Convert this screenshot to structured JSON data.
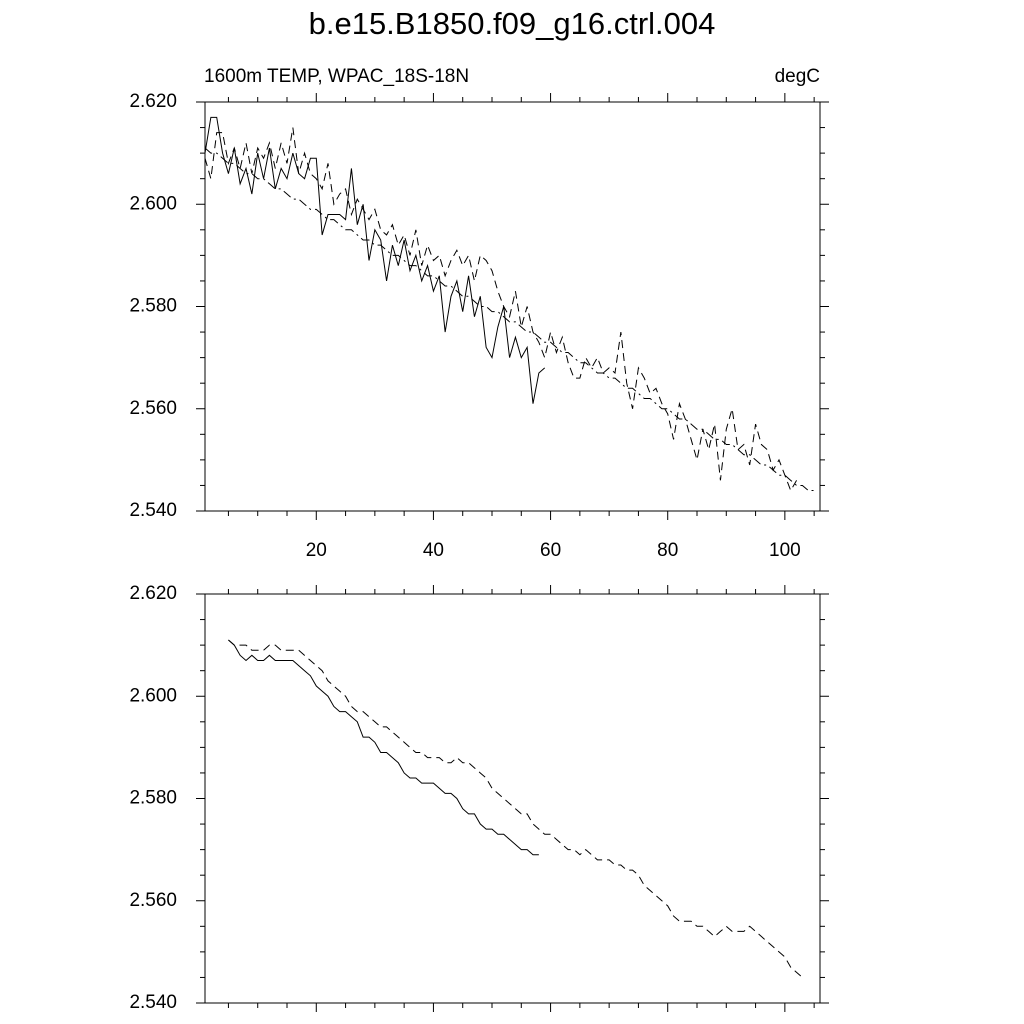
{
  "title": "b.e15.B1850.f09_g16.ctrl.004",
  "chart_data": [
    {
      "type": "line",
      "left_string": "1600m TEMP, WPAC_18S-18N",
      "right_string": "degC",
      "x": [
        1,
        2,
        3,
        4,
        5,
        6,
        7,
        8,
        9,
        10,
        11,
        12,
        13,
        14,
        15,
        16,
        17,
        18,
        19,
        20,
        21,
        22,
        23,
        24,
        25,
        26,
        27,
        28,
        29,
        30,
        31,
        32,
        33,
        34,
        35,
        36,
        37,
        38,
        39,
        40,
        41,
        42,
        43,
        44,
        45,
        46,
        47,
        48,
        49,
        50,
        51,
        52,
        53,
        54,
        55,
        56,
        57,
        58,
        59,
        60,
        61,
        62,
        63,
        64,
        65,
        66,
        67,
        68,
        69,
        70,
        71,
        72,
        73,
        74,
        75,
        76,
        77,
        78,
        79,
        80,
        81,
        82,
        83,
        84,
        85,
        86,
        87,
        88,
        89,
        90,
        91,
        92,
        93,
        94,
        95,
        96,
        97,
        98,
        99,
        100,
        101,
        102,
        103,
        104,
        105
      ],
      "xlim": [
        1,
        106
      ],
      "xticks": [
        20,
        40,
        60,
        80,
        100
      ],
      "xminorticks": [
        5,
        10,
        15,
        25,
        30,
        35,
        45,
        50,
        55,
        65,
        70,
        75,
        85,
        90,
        95,
        105
      ],
      "ylim": [
        2.54,
        2.62
      ],
      "yticks": [
        {
          "value": 2.54,
          "label": "2.540"
        },
        {
          "value": 2.56,
          "label": "2.560"
        },
        {
          "value": 2.58,
          "label": "2.580"
        },
        {
          "value": 2.6,
          "label": "2.600"
        },
        {
          "value": 2.62,
          "label": "2.620"
        }
      ],
      "yminorticks": [
        2.545,
        2.55,
        2.555,
        2.565,
        2.57,
        2.575,
        2.585,
        2.59,
        2.595,
        2.605,
        2.61,
        2.615
      ],
      "series": [
        {
          "color": "#000000",
          "dash": "solid",
          "values": [
            2.61,
            2.617,
            2.617,
            2.61,
            2.606,
            2.611,
            2.604,
            2.607,
            2.602,
            2.61,
            2.605,
            2.611,
            2.603,
            2.607,
            2.605,
            2.61,
            2.606,
            2.605,
            2.609,
            2.609,
            2.594,
            2.598,
            2.598,
            2.598,
            2.597,
            2.607,
            2.596,
            2.6,
            2.589,
            2.595,
            2.593,
            2.585,
            2.592,
            2.588,
            2.593,
            2.587,
            2.59,
            2.585,
            2.588,
            2.583,
            2.586,
            2.575,
            2.582,
            2.585,
            2.579,
            2.586,
            2.578,
            2.582,
            2.572,
            2.57,
            2.576,
            2.58,
            2.57,
            2.574,
            2.57,
            2.572,
            2.561,
            2.567,
            2.568,
            null,
            null,
            null,
            null,
            null,
            null,
            null,
            null,
            null,
            null,
            null,
            null,
            null,
            null,
            null,
            null,
            null,
            null,
            null,
            null,
            null,
            null,
            null,
            null,
            null,
            null,
            null,
            null,
            null,
            null,
            null,
            null,
            null,
            null,
            null,
            null,
            null,
            null,
            null,
            null,
            null,
            null,
            null,
            null,
            null,
            null
          ]
        },
        {
          "color": "#000000",
          "dash": "dashed",
          "values": [
            2.609,
            2.605,
            2.614,
            2.614,
            2.608,
            2.611,
            2.607,
            2.612,
            2.606,
            2.611,
            2.609,
            2.612,
            2.607,
            2.612,
            2.608,
            2.615,
            2.606,
            2.61,
            2.606,
            2.605,
            2.603,
            2.608,
            2.6,
            2.602,
            2.603,
            2.598,
            2.601,
            2.599,
            2.597,
            2.599,
            2.595,
            2.594,
            2.596,
            2.592,
            2.594,
            2.59,
            2.595,
            2.588,
            2.592,
            2.589,
            2.59,
            2.586,
            2.589,
            2.591,
            2.588,
            2.59,
            2.585,
            2.59,
            2.589,
            2.587,
            2.583,
            2.58,
            2.578,
            2.583,
            2.576,
            2.58,
            2.575,
            2.573,
            2.57,
            2.575,
            2.571,
            2.574,
            2.569,
            2.566,
            2.566,
            2.57,
            2.568,
            2.57,
            2.567,
            2.568,
            2.567,
            2.575,
            2.565,
            2.56,
            2.568,
            2.566,
            2.563,
            2.564,
            2.561,
            2.559,
            2.554,
            2.561,
            2.558,
            2.554,
            2.55,
            2.556,
            2.552,
            2.557,
            2.546,
            2.556,
            2.56,
            2.552,
            2.553,
            2.549,
            2.557,
            2.553,
            2.552,
            2.548,
            2.55,
            2.547,
            2.544,
            2.546,
            null,
            null,
            null
          ]
        },
        {
          "color": "#000000",
          "dash": "dashdot",
          "values": [
            2.611,
            2.61,
            2.61,
            2.609,
            2.608,
            2.608,
            2.607,
            2.606,
            2.606,
            2.605,
            2.605,
            2.604,
            2.603,
            2.603,
            2.602,
            2.601,
            2.601,
            2.6,
            2.599,
            2.599,
            2.598,
            2.597,
            2.597,
            2.596,
            2.595,
            2.595,
            2.594,
            2.593,
            2.593,
            2.592,
            2.592,
            2.591,
            2.59,
            2.59,
            2.589,
            2.588,
            2.588,
            2.587,
            2.586,
            2.586,
            2.585,
            2.584,
            2.584,
            2.583,
            2.582,
            2.582,
            2.581,
            2.58,
            2.58,
            2.579,
            2.579,
            2.578,
            2.577,
            2.577,
            2.576,
            2.575,
            2.575,
            2.574,
            2.573,
            2.573,
            2.572,
            2.571,
            2.571,
            2.57,
            2.569,
            2.569,
            2.568,
            2.567,
            2.567,
            2.566,
            2.566,
            2.565,
            2.564,
            2.564,
            2.563,
            2.562,
            2.562,
            2.561,
            2.56,
            2.56,
            2.559,
            2.558,
            2.558,
            2.557,
            2.556,
            2.556,
            2.555,
            2.554,
            2.554,
            2.553,
            2.553,
            2.552,
            2.551,
            2.551,
            2.55,
            2.549,
            2.549,
            2.548,
            2.547,
            2.547,
            2.546,
            2.545,
            2.545,
            2.544,
            2.544
          ]
        }
      ]
    },
    {
      "type": "line",
      "x": [
        5,
        6,
        7,
        8,
        9,
        10,
        11,
        12,
        13,
        14,
        15,
        16,
        17,
        18,
        19,
        20,
        21,
        22,
        23,
        24,
        25,
        26,
        27,
        28,
        29,
        30,
        31,
        32,
        33,
        34,
        35,
        36,
        37,
        38,
        39,
        40,
        41,
        42,
        43,
        44,
        45,
        46,
        47,
        48,
        49,
        50,
        51,
        52,
        53,
        54,
        55,
        56,
        57,
        58,
        59,
        60,
        61,
        62,
        63,
        64,
        65,
        66,
        67,
        68,
        69,
        70,
        71,
        72,
        73,
        74,
        75,
        76,
        77,
        78,
        79,
        80,
        81,
        82,
        83,
        84,
        85,
        86,
        87,
        88,
        89,
        90,
        91,
        92,
        93,
        94,
        95,
        96,
        97,
        98,
        99,
        100,
        101,
        102,
        103
      ],
      "xlim": [
        1,
        106
      ],
      "xticks": [
        20,
        40,
        60,
        80,
        100
      ],
      "xminorticks": [
        5,
        10,
        15,
        25,
        30,
        35,
        45,
        50,
        55,
        65,
        70,
        75,
        85,
        90,
        95,
        105
      ],
      "ylim": [
        2.54,
        2.62
      ],
      "yticks": [
        {
          "value": 2.54,
          "label": "2.540"
        },
        {
          "value": 2.56,
          "label": "2.560"
        },
        {
          "value": 2.58,
          "label": "2.580"
        },
        {
          "value": 2.6,
          "label": "2.600"
        },
        {
          "value": 2.62,
          "label": "2.620"
        }
      ],
      "yminorticks": [
        2.545,
        2.55,
        2.555,
        2.565,
        2.57,
        2.575,
        2.585,
        2.59,
        2.595,
        2.605,
        2.61,
        2.615
      ],
      "series": [
        {
          "color": "#000000",
          "dash": "solid",
          "values": [
            2.611,
            2.61,
            2.608,
            2.607,
            2.608,
            2.607,
            2.607,
            2.608,
            2.607,
            2.607,
            2.607,
            2.607,
            2.606,
            2.605,
            2.604,
            2.602,
            2.601,
            2.6,
            2.598,
            2.597,
            2.597,
            2.596,
            2.595,
            2.592,
            2.592,
            2.591,
            2.589,
            2.589,
            2.588,
            2.587,
            2.585,
            2.584,
            2.584,
            2.583,
            2.583,
            2.583,
            2.582,
            2.581,
            2.581,
            2.58,
            2.578,
            2.577,
            2.577,
            2.575,
            2.574,
            2.574,
            2.573,
            2.573,
            2.572,
            2.571,
            2.57,
            2.57,
            2.569,
            2.569,
            null,
            null,
            null,
            null,
            null,
            null,
            null,
            null,
            null,
            null,
            null,
            null,
            null,
            null,
            null,
            null,
            null,
            null,
            null,
            null,
            null,
            null,
            null,
            null,
            null,
            null,
            null,
            null,
            null,
            null,
            null,
            null,
            null,
            null,
            null,
            null,
            null,
            null,
            null,
            null,
            null,
            null,
            null,
            null,
            null
          ]
        },
        {
          "color": "#000000",
          "dash": "dashed",
          "values": [
            2.611,
            2.61,
            2.61,
            2.61,
            2.609,
            2.609,
            2.609,
            2.61,
            2.61,
            2.609,
            2.609,
            2.609,
            2.609,
            2.608,
            2.607,
            2.606,
            2.605,
            2.603,
            2.602,
            2.601,
            2.6,
            2.598,
            2.597,
            2.597,
            2.596,
            2.595,
            2.594,
            2.594,
            2.593,
            2.592,
            2.591,
            2.59,
            2.589,
            2.589,
            2.588,
            2.588,
            2.588,
            2.587,
            2.587,
            2.588,
            2.587,
            2.587,
            2.586,
            2.585,
            2.584,
            2.582,
            2.581,
            2.58,
            2.579,
            2.578,
            2.577,
            2.577,
            2.575,
            2.574,
            2.573,
            2.573,
            2.572,
            2.571,
            2.57,
            2.57,
            2.569,
            2.57,
            2.569,
            2.568,
            2.568,
            2.568,
            2.567,
            2.567,
            2.566,
            2.566,
            2.565,
            2.563,
            2.562,
            2.561,
            2.56,
            2.559,
            2.557,
            2.556,
            2.556,
            2.556,
            2.555,
            2.555,
            2.554,
            2.553,
            2.554,
            2.555,
            2.554,
            2.554,
            2.554,
            2.555,
            2.554,
            2.553,
            2.552,
            2.551,
            2.55,
            2.549,
            2.547,
            2.546,
            2.545
          ]
        }
      ]
    }
  ]
}
